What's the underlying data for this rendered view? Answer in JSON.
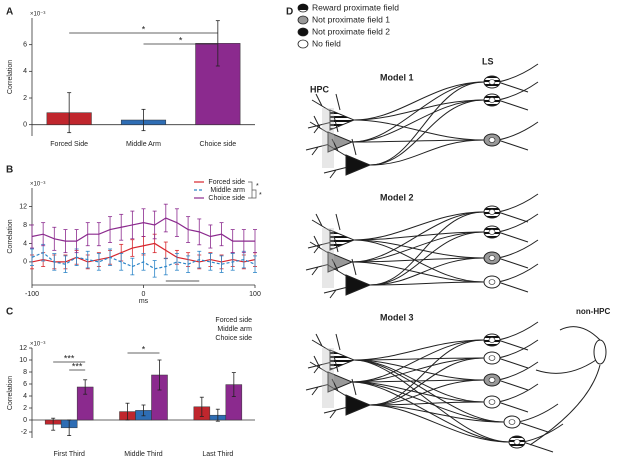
{
  "chart_data": [
    {
      "type": "bar",
      "panel": "A",
      "multiplier": "×10⁻³",
      "ylabel": "Correlation",
      "categories": [
        "Forced Side",
        "Middle Arm",
        "Choice side"
      ],
      "values": [
        0.9,
        0.35,
        6.1
      ],
      "errors": [
        1.5,
        0.8,
        1.7
      ],
      "colors": [
        "#c0262d",
        "#2e6db4",
        "#8b2a8e"
      ],
      "ylim": [
        -0.85,
        8
      ],
      "yticks": [
        0,
        2,
        4,
        6
      ],
      "annotations": [
        "*",
        "*"
      ]
    },
    {
      "type": "line",
      "panel": "B",
      "multiplier": "×10⁻³",
      "ylabel": "Correlation",
      "xlabel": "ms",
      "x": [
        -100,
        -90,
        -80,
        -70,
        -60,
        -50,
        -40,
        -30,
        -20,
        -10,
        0,
        10,
        20,
        30,
        40,
        50,
        60,
        70,
        80,
        90,
        100
      ],
      "series": [
        {
          "name": "Forced side",
          "color": "#d7262d",
          "dashed": false,
          "values": [
            0,
            0.5,
            0,
            0,
            1,
            0,
            0.5,
            1,
            2,
            3,
            3.5,
            4,
            2.5,
            1,
            0.5,
            0,
            0.5,
            0,
            0.5,
            0,
            0.5
          ],
          "errors": [
            1.5,
            1.5,
            1.5,
            1.5,
            1.5,
            1.5,
            1.5,
            1.5,
            1.8,
            1.8,
            2,
            2,
            1.8,
            1.5,
            1.5,
            1.5,
            1.5,
            1.5,
            1.5,
            1.5,
            1.5
          ]
        },
        {
          "name": "Middle arm",
          "color": "#2e86c8",
          "dashed": true,
          "values": [
            1,
            2,
            0,
            -0.5,
            1,
            0.5,
            0,
            1,
            0,
            -1,
            0,
            -1.5,
            -1,
            0,
            -0.5,
            0.5,
            0,
            -0.5,
            0,
            0.5,
            -0.5
          ],
          "errors": [
            1.8,
            1.8,
            1.8,
            1.8,
            1.8,
            1.8,
            1.8,
            1.8,
            1.8,
            1.8,
            1.8,
            1.8,
            1.8,
            1.8,
            1.8,
            1.8,
            1.8,
            1.8,
            1.8,
            1.8,
            1.8
          ]
        },
        {
          "name": "Choice side",
          "color": "#8b2a8e",
          "dashed": false,
          "values": [
            5.5,
            6,
            5,
            4.5,
            4.5,
            6,
            6,
            7,
            7.5,
            8,
            8.5,
            8,
            9.5,
            8.5,
            7,
            6.5,
            5.5,
            6,
            4.5,
            4.5,
            4.5
          ],
          "errors": [
            2.5,
            2.5,
            2.5,
            2.5,
            2.5,
            2.5,
            2.5,
            2.8,
            2.8,
            3,
            3,
            3,
            3,
            3,
            2.8,
            2.8,
            2.5,
            2.5,
            2.5,
            2.5,
            2.5
          ]
        }
      ],
      "xlim": [
        -100,
        100
      ],
      "xticks": [
        -100,
        0,
        100
      ],
      "ylim": [
        -5,
        16
      ],
      "yticks": [
        0,
        4,
        8,
        12
      ],
      "annotations": [
        "*",
        "*"
      ]
    },
    {
      "type": "grouped_bar",
      "panel": "C",
      "multiplier": "×10⁻³",
      "ylabel": "Correlation",
      "categories": [
        "First Third",
        "Middle Third",
        "Last Third"
      ],
      "series": [
        {
          "name": "Forced side",
          "color": "#c0262d",
          "values": [
            -0.7,
            1.4,
            2.2
          ],
          "errors": [
            1.0,
            1.4,
            1.6
          ]
        },
        {
          "name": "Middle arm",
          "color": "#2e6db4",
          "values": [
            -1.3,
            1.6,
            0.8
          ],
          "errors": [
            1.3,
            0.9,
            1.0
          ]
        },
        {
          "name": "Choice side",
          "color": "#8b2a8e",
          "values": [
            5.5,
            7.5,
            5.9
          ],
          "errors": [
            1.2,
            2.5,
            2.0
          ]
        }
      ],
      "ylim": [
        -3,
        12
      ],
      "yticks": [
        -2,
        0,
        2,
        4,
        6,
        8,
        10,
        12
      ],
      "annotations": [
        "***",
        "***",
        "*"
      ]
    }
  ],
  "diagram": {
    "panel": "D",
    "legend": [
      "Reward proximate field",
      "Not proximate field 1",
      "Not proximate field 2",
      "No field"
    ],
    "models": [
      "Model 1",
      "Model 2",
      "Model 3"
    ],
    "labels": {
      "ls": "LS",
      "hpc": "HPC",
      "non_hpc": "non-HPC"
    }
  }
}
